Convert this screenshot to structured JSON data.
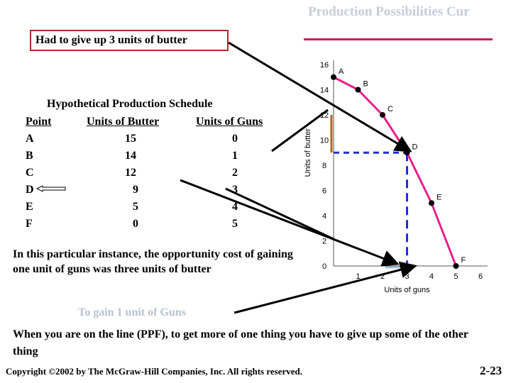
{
  "slide": {
    "title": "Production Possibilities Cur",
    "callout_top": "Had to give up 3 units of butter",
    "callout_bottom": "To gain 1 unit of Guns",
    "opportunity_text": "In this particular instance, the opportunity cost of gaining one unit of guns was three units  of butter",
    "ppf_text": "When you are on the line (PPF), to get more of one thing you have to give up some of the other thing",
    "copyright": "Copyright ©2002 by The McGraw-Hill Companies, Inc.  All rights reserved.",
    "slide_number": "2-23"
  },
  "schedule": {
    "title": "Hypothetical Production Schedule",
    "headers": [
      "Point",
      "Units of Butter",
      "Units of Guns"
    ],
    "rows": [
      {
        "point": "A",
        "butter": "15",
        "guns": "0"
      },
      {
        "point": "B",
        "butter": "14",
        "guns": "1"
      },
      {
        "point": "C",
        "butter": "12",
        "guns": "2"
      },
      {
        "point": "D",
        "butter": "9",
        "guns": "3"
      },
      {
        "point": "E",
        "butter": "5",
        "guns": "4"
      },
      {
        "point": "F",
        "butter": "0",
        "guns": "5"
      }
    ]
  },
  "chart_data": {
    "type": "line",
    "xlabel": "Units of guns",
    "ylabel": "Units of butter",
    "xlim": [
      0,
      6
    ],
    "ylim": [
      0,
      16
    ],
    "x_ticks": [
      0,
      1,
      2,
      3,
      4,
      5,
      6
    ],
    "y_ticks": [
      0,
      2,
      4,
      6,
      8,
      10,
      12,
      14,
      16
    ],
    "points": [
      {
        "label": "A",
        "x": 0,
        "y": 15
      },
      {
        "label": "B",
        "x": 1,
        "y": 14
      },
      {
        "label": "C",
        "x": 2,
        "y": 12
      },
      {
        "label": "D",
        "x": 3,
        "y": 9
      },
      {
        "label": "E",
        "x": 4,
        "y": 5
      },
      {
        "label": "F",
        "x": 5,
        "y": 0
      }
    ],
    "highlight": {
      "from_y": 12,
      "to_y": 9,
      "at_x": 3
    },
    "colors": {
      "curve": "#e8208a",
      "marker": "#000000",
      "dashed": "#1f2fd0",
      "brace": "#b5651d",
      "arrow": "#000000"
    }
  }
}
